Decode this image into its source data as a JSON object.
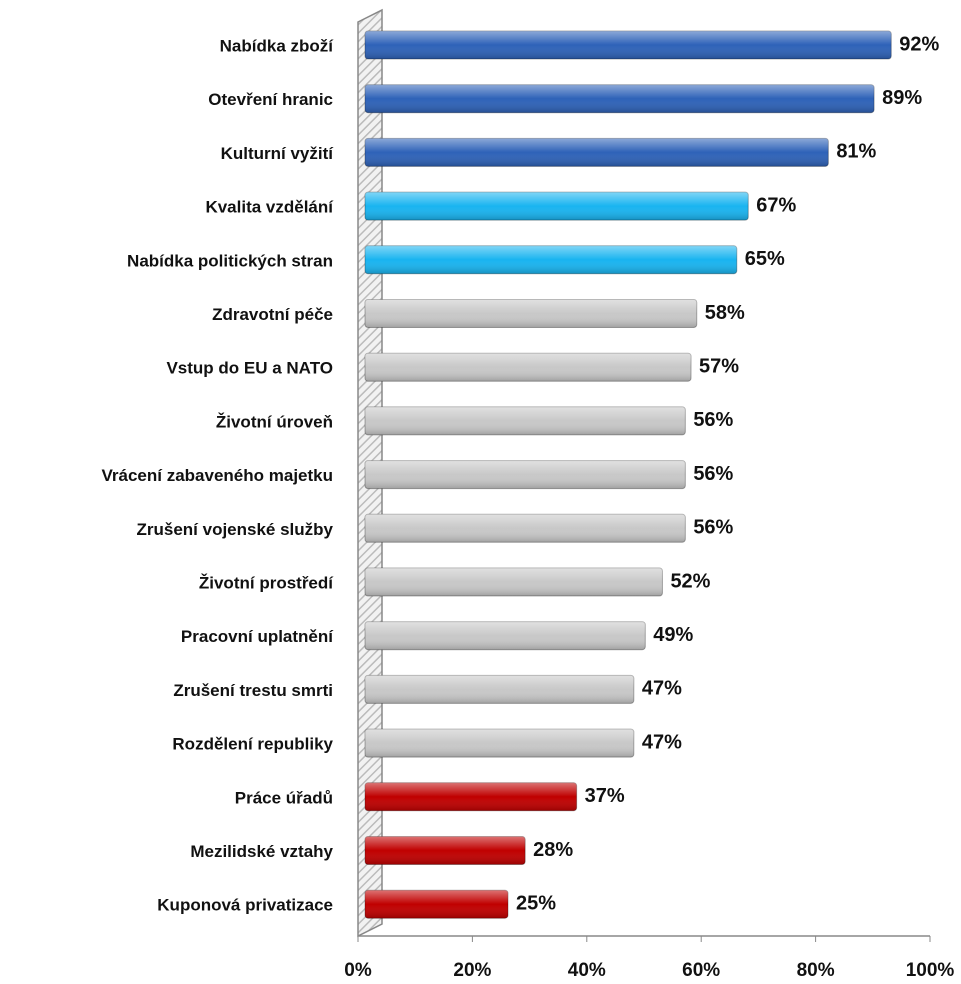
{
  "chart_data": {
    "type": "barh",
    "categories": [
      "Nabídka zboží",
      "Otevření hranic",
      "Kulturní vyžití",
      "Kvalita vzdělání",
      "Nabídka politických stran",
      "Zdravotní péče",
      "Vstup do EU a NATO",
      "Životní úroveň",
      "Vrácení zabaveného majetku",
      "Zrušení vojenské služby",
      "Životní prostředí",
      "Pracovní uplatnění",
      "Zrušení trestu smrti",
      "Rozdělení republiky",
      "Práce úřadů",
      "Mezilidské vztahy",
      "Kuponová privatizace"
    ],
    "values": [
      92,
      89,
      81,
      67,
      65,
      58,
      57,
      56,
      56,
      56,
      52,
      49,
      47,
      47,
      37,
      28,
      25
    ],
    "value_labels": [
      "92%",
      "89%",
      "81%",
      "67%",
      "65%",
      "58%",
      "57%",
      "56%",
      "56%",
      "56%",
      "52%",
      "49%",
      "47%",
      "47%",
      "37%",
      "28%",
      "25%"
    ],
    "colors": [
      "#2e62b8",
      "#2e62b8",
      "#2e62b8",
      "#19b4f0",
      "#19b4f0",
      "#c8c8c8",
      "#c8c8c8",
      "#c8c8c8",
      "#c8c8c8",
      "#c8c8c8",
      "#c8c8c8",
      "#c8c8c8",
      "#c8c8c8",
      "#c8c8c8",
      "#c00000",
      "#c00000",
      "#c00000"
    ],
    "xlim": [
      0,
      100
    ],
    "xticks": [
      {
        "value": 0,
        "label": "0%"
      },
      {
        "value": 20,
        "label": "20%"
      },
      {
        "value": 40,
        "label": "40%"
      },
      {
        "value": 60,
        "label": "60%"
      },
      {
        "value": 80,
        "label": "80%"
      },
      {
        "value": 100,
        "label": "100%"
      }
    ]
  }
}
